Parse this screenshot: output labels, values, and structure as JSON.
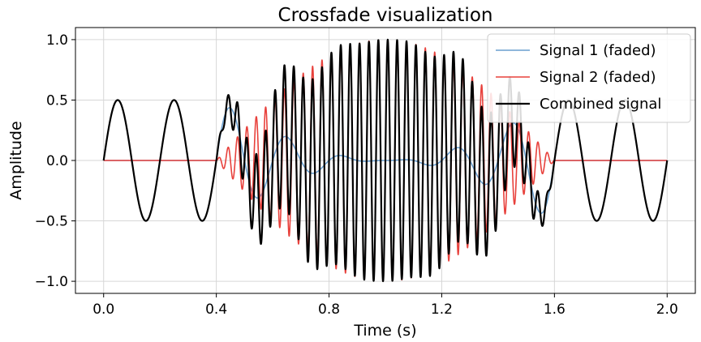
{
  "chart_data": {
    "type": "line",
    "title": "Crossfade visualization",
    "xlabel": "Time (s)",
    "ylabel": "Amplitude",
    "xlim": [
      -0.1,
      2.1
    ],
    "ylim": [
      -1.1,
      1.1
    ],
    "xticks": [
      0.0,
      0.4,
      0.8,
      1.2,
      1.6,
      2.0
    ],
    "xtick_labels": [
      "0.0",
      "0.4",
      "0.8",
      "1.2",
      "1.6",
      "2.0"
    ],
    "yticks": [
      1.0,
      0.5,
      0.0,
      -0.5,
      -1.0
    ],
    "ytick_labels": [
      "1.0",
      "0.5",
      "0.0",
      "−0.5",
      "−1.0"
    ],
    "grid": true,
    "legend_position": "top-right",
    "signal_params": {
      "t_start": 0.0,
      "t_end": 2.0,
      "crossfade_start": 0.4,
      "crossfade_end": 1.6,
      "signal1_amplitude": 0.5,
      "signal1_frequency_hz": 5,
      "signal2_amplitude": 1.0,
      "signal2_frequency_hz": 30
    },
    "series": [
      {
        "name": "Signal 1 (faded)",
        "color": "#6a9fcf",
        "stroke_width": 1.6
      },
      {
        "name": "Signal 2 (faded)",
        "color": "#e8413c",
        "stroke_width": 1.6
      },
      {
        "name": "Combined signal",
        "color": "#000000",
        "stroke_width": 2.2
      }
    ]
  }
}
